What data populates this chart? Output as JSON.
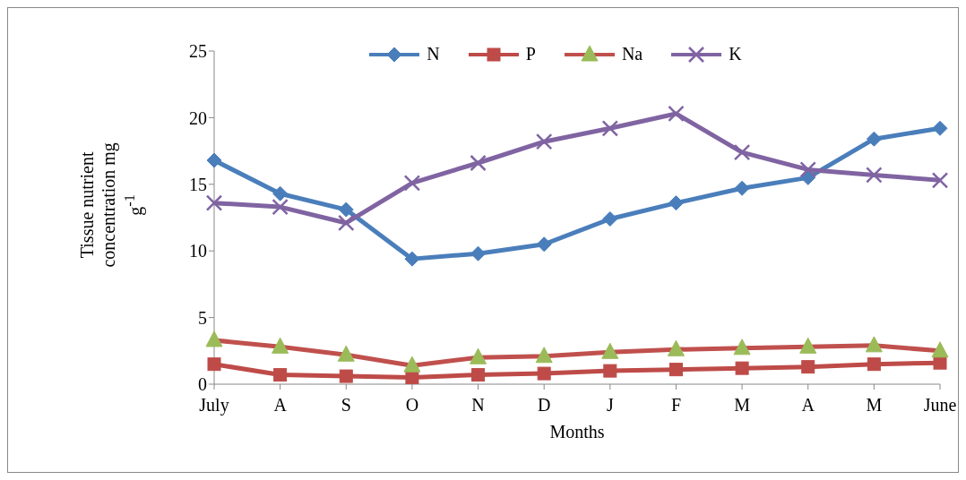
{
  "chart_data": {
    "type": "line",
    "xlabel": "Months",
    "ylabel": "Tissue nutrient concentration mg g$^{-1}$",
    "categories": [
      "July",
      "A",
      "S",
      "O",
      "N",
      "D",
      "J",
      "F",
      "M",
      "A",
      "M",
      "June"
    ],
    "series": [
      {
        "name": "N",
        "color": "#4a7ebb",
        "marker": "diamond",
        "values": [
          16.8,
          14.3,
          13.1,
          9.4,
          9.8,
          10.5,
          12.4,
          13.6,
          14.7,
          15.5,
          18.4,
          19.2
        ]
      },
      {
        "name": "P",
        "color": "#be4b48",
        "marker": "square",
        "values": [
          1.5,
          0.7,
          0.6,
          0.5,
          0.7,
          0.8,
          1.0,
          1.1,
          1.2,
          1.3,
          1.5,
          1.6
        ]
      },
      {
        "name": "Na",
        "color": "#c0504d",
        "marker": "triangle",
        "colors": [
          "#9bbb59",
          "#9bbb59",
          "#9bbb59",
          "#9bbb59",
          "#9bbb59",
          "#9bbb59",
          "#9bbb59",
          "#9bbb59",
          "#9bbb59",
          "#9bbb59",
          "#9bbb59",
          "#9bbb59"
        ],
        "values": [
          3.3,
          2.8,
          2.2,
          1.4,
          2.0,
          2.1,
          2.4,
          2.6,
          2.7,
          2.8,
          2.9,
          2.5
        ]
      },
      {
        "name": "K",
        "color": "#8064a2",
        "marker": "cross",
        "values": [
          13.6,
          13.3,
          12.1,
          15.1,
          16.6,
          18.2,
          19.2,
          20.3,
          17.4,
          16.1,
          15.7,
          15.3
        ]
      }
    ],
    "ylim": [
      0,
      25
    ],
    "yticks": [
      0,
      5,
      10,
      15,
      20,
      25
    ],
    "grid": false,
    "legend": "top",
    "line_style": "solid"
  }
}
